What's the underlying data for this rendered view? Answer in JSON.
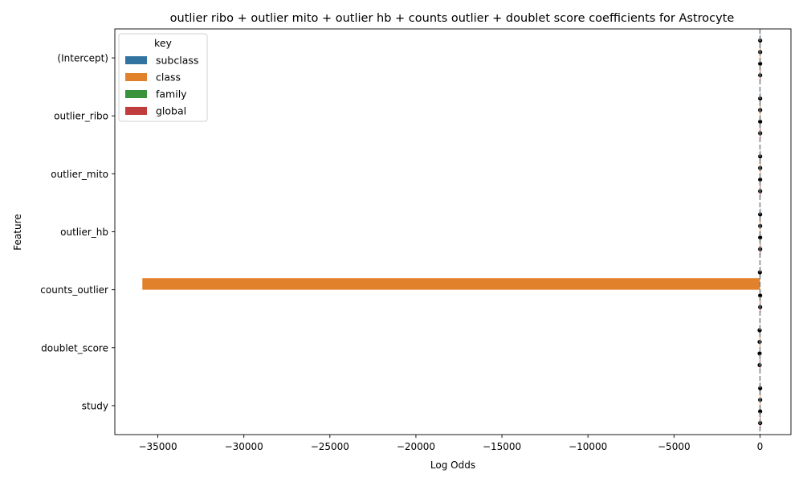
{
  "chart_data": {
    "type": "bar",
    "orientation": "horizontal",
    "title": "outlier ribo + outlier mito + outlier hb + counts outlier + doublet score coefficients for Astrocyte",
    "xlabel": "Log Odds",
    "ylabel": "Feature",
    "categories": [
      "(Intercept)",
      "outlier_ribo",
      "outlier_mito",
      "outlier_hb",
      "counts_outlier",
      "doublet_score",
      "study"
    ],
    "xlim": [
      -37500,
      1800
    ],
    "xticks": [
      -35000,
      -30000,
      -25000,
      -20000,
      -15000,
      -10000,
      -5000,
      0
    ],
    "xtick_labels": [
      "−35000",
      "−30000",
      "−25000",
      "−20000",
      "−15000",
      "−10000",
      "−5000",
      "0"
    ],
    "reference_line": 0,
    "legend": {
      "title": "key",
      "position": "top-left"
    },
    "series": [
      {
        "name": "subclass",
        "color": "#3274a1",
        "values": [
          10,
          10,
          10,
          10,
          -5,
          -20,
          10
        ]
      },
      {
        "name": "class",
        "color": "#e1812c",
        "values": [
          10,
          10,
          10,
          10,
          -35900,
          -20,
          10
        ]
      },
      {
        "name": "family",
        "color": "#3a923a",
        "values": [
          10,
          10,
          10,
          10,
          10,
          -20,
          10
        ]
      },
      {
        "name": "global",
        "color": "#c03d3e",
        "values": [
          10,
          10,
          10,
          10,
          10,
          -20,
          10
        ]
      }
    ],
    "grid": false
  }
}
